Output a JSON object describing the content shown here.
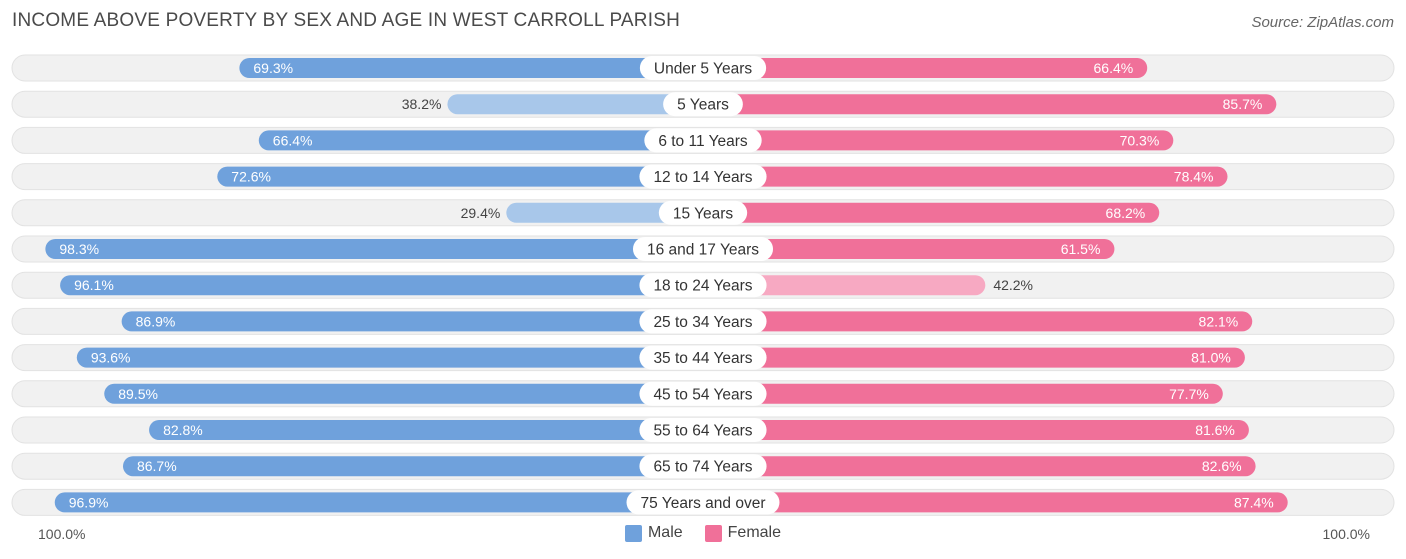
{
  "title": "INCOME ABOVE POVERTY BY SEX AND AGE IN WEST CARROLL PARISH",
  "source": "Source: ZipAtlas.com",
  "axis": {
    "left_label": "100.0%",
    "right_label": "100.0%"
  },
  "legend": {
    "male_label": "Male",
    "female_label": "Female"
  },
  "colors": {
    "male_strong": "#6fa1dc",
    "male_light": "#a8c7ea",
    "female_strong": "#f07099",
    "female_light": "#f7a9c2",
    "track": "#f1f1f1"
  },
  "chart_data": {
    "type": "bar",
    "orientation": "horizontal-diverging",
    "title": "INCOME ABOVE POVERTY BY SEX AND AGE IN WEST CARROLL PARISH",
    "categories": [
      "Under 5 Years",
      "5 Years",
      "6 to 11 Years",
      "12 to 14 Years",
      "15 Years",
      "16 and 17 Years",
      "18 to 24 Years",
      "25 to 34 Years",
      "35 to 44 Years",
      "45 to 54 Years",
      "55 to 64 Years",
      "65 to 74 Years",
      "75 Years and over"
    ],
    "series": [
      {
        "name": "Male",
        "values": [
          69.3,
          38.2,
          66.4,
          72.6,
          29.4,
          98.3,
          96.1,
          86.9,
          93.6,
          89.5,
          82.8,
          86.7,
          96.9
        ]
      },
      {
        "name": "Female",
        "values": [
          66.4,
          85.7,
          70.3,
          78.4,
          68.2,
          61.5,
          42.2,
          82.1,
          81.0,
          77.7,
          81.6,
          82.6,
          87.4
        ]
      }
    ],
    "xlim": [
      0,
      100
    ],
    "unit": "%",
    "legend_position": "bottom-center"
  }
}
